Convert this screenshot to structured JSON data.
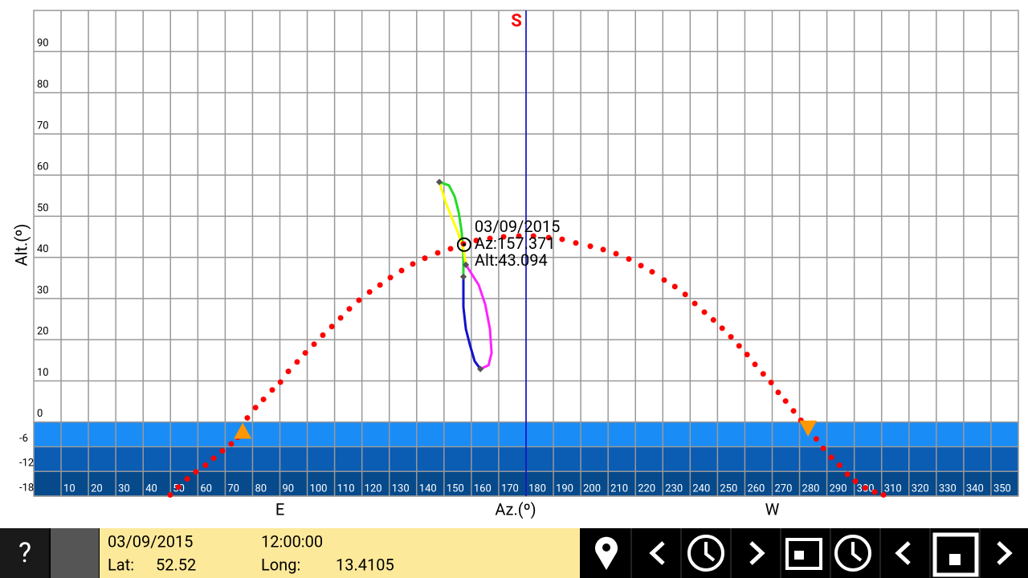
{
  "chart_data": {
    "type": "sunpath",
    "x_label": "Az.(º)",
    "y_label": "Alt.(º)",
    "xlim": [
      0,
      360
    ],
    "ylim": [
      -18,
      100
    ],
    "xticks": [
      10,
      20,
      30,
      40,
      50,
      60,
      70,
      80,
      90,
      100,
      110,
      120,
      130,
      140,
      150,
      160,
      170,
      180,
      190,
      200,
      210,
      220,
      230,
      240,
      250,
      260,
      270,
      280,
      290,
      300,
      310,
      320,
      330,
      340,
      350
    ],
    "yticks": [
      -18,
      -12,
      -6,
      0,
      10,
      20,
      30,
      40,
      50,
      60,
      70,
      80,
      90
    ],
    "grid": true,
    "compass": [
      {
        "value": 90,
        "label": "E"
      },
      {
        "value": 180,
        "label": "S"
      },
      {
        "value": 270,
        "label": "W"
      }
    ],
    "bands": [
      {
        "from": 0,
        "to": -6,
        "color": "#1a8cf5"
      },
      {
        "from": -6,
        "to": -12,
        "color": "#0b5cb3"
      },
      {
        "from": -12,
        "to": -18,
        "color": "#064a8c"
      }
    ],
    "sun_path": {
      "color": "#ff0000",
      "az": [
        49.9,
        52.9,
        56.1,
        59.3,
        62.8,
        65.8,
        69.0,
        72.2,
        74.6,
        78.1,
        81.1,
        84.0,
        87.2,
        90.2,
        93.1,
        96.3,
        99.3,
        102.5,
        105.7,
        109.0,
        112.2,
        115.4,
        118.9,
        122.8,
        126.6,
        130.4,
        134.5,
        138.6,
        143.0,
        147.7,
        152.4,
        157.1,
        161.8,
        166.8,
        171.8,
        177.4,
        182.7,
        188.3,
        193.2,
        198.2,
        203.5,
        208.2,
        212.9,
        217.6,
        222.0,
        226.1,
        230.5,
        234.4,
        238.2,
        241.7,
        245.2,
        248.5,
        251.7,
        254.9,
        257.9,
        260.8,
        263.7,
        266.7,
        269.6,
        272.2,
        274.9,
        277.8,
        280.5,
        283.1,
        286.1,
        288.7,
        291.6,
        294.6,
        297.5,
        300.4,
        304.0,
        307.5,
        310.7
      ],
      "alt": [
        -17.7,
        -15.8,
        -13.8,
        -12.1,
        -10.5,
        -8.8,
        -7.0,
        -5.3,
        -3.7,
        1.0,
        3.5,
        5.5,
        7.8,
        9.7,
        12.3,
        14.6,
        16.8,
        18.9,
        21.1,
        23.2,
        25.3,
        27.5,
        29.6,
        31.6,
        33.3,
        35.1,
        36.8,
        38.4,
        39.8,
        41.1,
        42.1,
        43.3,
        44.1,
        44.6,
        45.0,
        45.2,
        45.2,
        44.8,
        44.4,
        43.5,
        42.7,
        41.9,
        40.9,
        39.6,
        38.0,
        36.5,
        34.5,
        32.9,
        31.0,
        28.8,
        26.7,
        24.8,
        22.8,
        20.7,
        18.5,
        16.4,
        14.0,
        11.7,
        9.6,
        7.2,
        5.1,
        2.7,
        0.4,
        -1.8,
        -4.1,
        -6.4,
        -8.6,
        -10.5,
        -12.7,
        -14.4,
        -16.0,
        -17.0,
        -17.7
      ]
    },
    "analemma": [
      {
        "color": "#22dd22",
        "az": [
          148.3,
          151.8,
          153.9,
          155.4,
          156.5,
          157.1,
          157.1
        ],
        "alt": [
          58.3,
          57.5,
          54.8,
          50.9,
          46.0,
          40.2,
          35.3
        ]
      },
      {
        "color": "#ffff00",
        "az": [
          148.3,
          149.5,
          150.7,
          152.7,
          155.1,
          157.1,
          158.0
        ],
        "alt": [
          58.3,
          55.8,
          53.2,
          49.9,
          46.0,
          42.1,
          38.2
        ]
      },
      {
        "color": "#ff22ff",
        "az": [
          158.0,
          162.7,
          165.1,
          166.8,
          167.4,
          166.3,
          163.3
        ],
        "alt": [
          38.2,
          33.3,
          28.5,
          22.6,
          16.8,
          13.8,
          12.9
        ]
      },
      {
        "color": "#1111cc",
        "az": [
          157.1,
          157.1,
          158.0,
          159.5,
          161.2,
          163.3
        ],
        "alt": [
          35.3,
          27.9,
          22.6,
          18.7,
          14.8,
          12.9
        ]
      }
    ],
    "sunrise_sunset": {
      "color": "#ff9800",
      "az": [
        76.4,
        283.1
      ],
      "alt": [
        -2.3,
        -1.4
      ]
    },
    "current": {
      "date": "03/09/2015",
      "az": 157.371,
      "alt": 43.094,
      "az_label": "Az:157.371",
      "alt_label": "Alt:43.094"
    }
  },
  "footer": {
    "help": "?",
    "date": "03/09/2015",
    "time": "12:00:00",
    "lat_label": "Lat:",
    "lat": "52.52",
    "long_label": "Long:",
    "long": "13.4105"
  }
}
